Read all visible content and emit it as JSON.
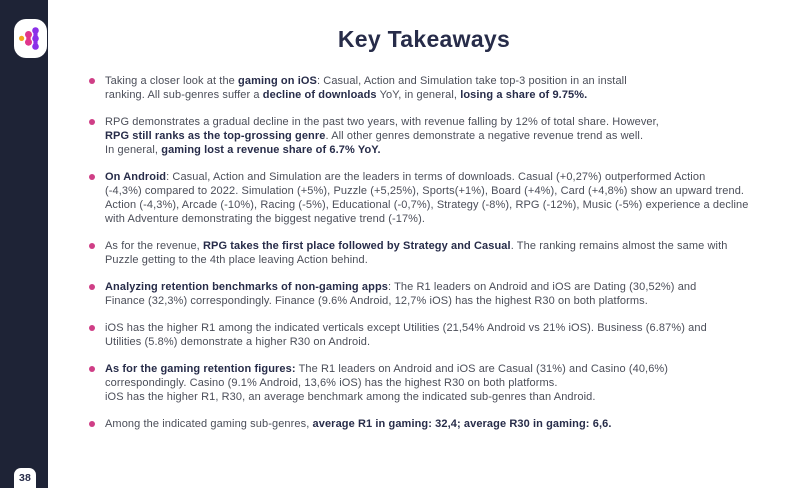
{
  "page": {
    "title": "Key Takeaways",
    "page_number": "38"
  },
  "sidebar": {
    "logo_icon": "dots-cluster-logo",
    "page_badge": "page-number-badge"
  },
  "colors": {
    "sidebar_bg": "#1e2336",
    "accent_pink": "#cf3e86",
    "heading": "#272c49",
    "body_text": "#4b4e59",
    "bold_text": "#272c49",
    "logo_orange": "#f2a71b",
    "logo_magenta": "#e0368c",
    "logo_purple": "#8b30e8"
  },
  "bullets": [
    {
      "lines": [
        [
          {
            "t": "Taking a closer look at the ",
            "b": 0
          },
          {
            "t": "gaming on iOS",
            "b": 1
          },
          {
            "t": ": Casual, Action and Simulation take top-3 position in an install",
            "b": 0
          }
        ],
        [
          {
            "t": "ranking. All sub-genres suffer a ",
            "b": 0
          },
          {
            "t": "decline of downloads",
            "b": 1
          },
          {
            "t": " YoY, in general, ",
            "b": 0
          },
          {
            "t": "losing a share of 9.75%.",
            "b": 1
          }
        ]
      ]
    },
    {
      "lines": [
        [
          {
            "t": "RPG demonstrates a gradual decline in the past two years, with revenue falling by 12% of total share. However,",
            "b": 0
          }
        ],
        [
          {
            "t": "RPG still ranks as the top-grossing genre",
            "b": 1
          },
          {
            "t": ". All other genres demonstrate a negative revenue trend as well.",
            "b": 0
          }
        ],
        [
          {
            "t": "In general, ",
            "b": 0
          },
          {
            "t": "gaming lost a revenue share of 6.7% YoY.",
            "b": 1
          }
        ]
      ]
    },
    {
      "lines": [
        [
          {
            "t": "On Android",
            "b": 1
          },
          {
            "t": ": Casual, Action and Simulation are the leaders in terms of downloads. Casual (+0,27%) outperformed Action",
            "b": 0
          }
        ],
        [
          {
            "t": "(-4,3%) compared to 2022. Simulation (+5%), Puzzle (+5,25%), Sports(+1%), Board (+4%), Card (+4,8%) show an upward trend.",
            "b": 0
          }
        ],
        [
          {
            "t": "Action (-4,3%), Arcade (-10%), Racing (-5%), Educational (-0,7%), Strategy (-8%), RPG (-12%), Music (-5%) experience a decline",
            "b": 0
          }
        ],
        [
          {
            "t": "with Adventure demonstrating the biggest negative trend (-17%).",
            "b": 0
          }
        ]
      ]
    },
    {
      "lines": [
        [
          {
            "t": "As for the revenue, ",
            "b": 0
          },
          {
            "t": "RPG takes the first place followed by Strategy and Casual",
            "b": 1
          },
          {
            "t": ". The ranking remains almost the same with",
            "b": 0
          }
        ],
        [
          {
            "t": "Puzzle getting to the 4th place leaving Action behind.",
            "b": 0
          }
        ]
      ]
    },
    {
      "lines": [
        [
          {
            "t": "Analyzing retention benchmarks of non-gaming apps",
            "b": 1
          },
          {
            "t": ": The R1 leaders on Android and iOS are Dating (30,52%) and",
            "b": 0
          }
        ],
        [
          {
            "t": "Finance (32,3%) correspondingly. Finance (9.6% Android, 12,7% iOS) has the highest R30 on both platforms.",
            "b": 0
          }
        ]
      ]
    },
    {
      "lines": [
        [
          {
            "t": "iOS has the higher R1 among the indicated verticals except Utilities (21,54% Android vs 21% iOS). Business (6.87%) and",
            "b": 0
          }
        ],
        [
          {
            "t": "Utilities (5.8%) demonstrate a higher R30 on Android.",
            "b": 0
          }
        ]
      ]
    },
    {
      "lines": [
        [
          {
            "t": "As for the gaming retention figures:",
            "b": 1
          },
          {
            "t": " The R1 leaders on Android and iOS are Casual (31%) and Casino (40,6%)",
            "b": 0
          }
        ],
        [
          {
            "t": "correspondingly. Casino (9.1% Android, 13,6% iOS) has the highest R30 on both platforms.",
            "b": 0
          }
        ],
        [
          {
            "t": "iOS has the higher R1, R30, an average benchmark among the indicated sub-genres than Android.",
            "b": 0
          }
        ]
      ]
    },
    {
      "lines": [
        [
          {
            "t": "Among the indicated gaming sub-genres, ",
            "b": 0
          },
          {
            "t": "average R1 in gaming: 32,4; average R30 in gaming: 6,6.",
            "b": 1
          }
        ]
      ]
    }
  ]
}
